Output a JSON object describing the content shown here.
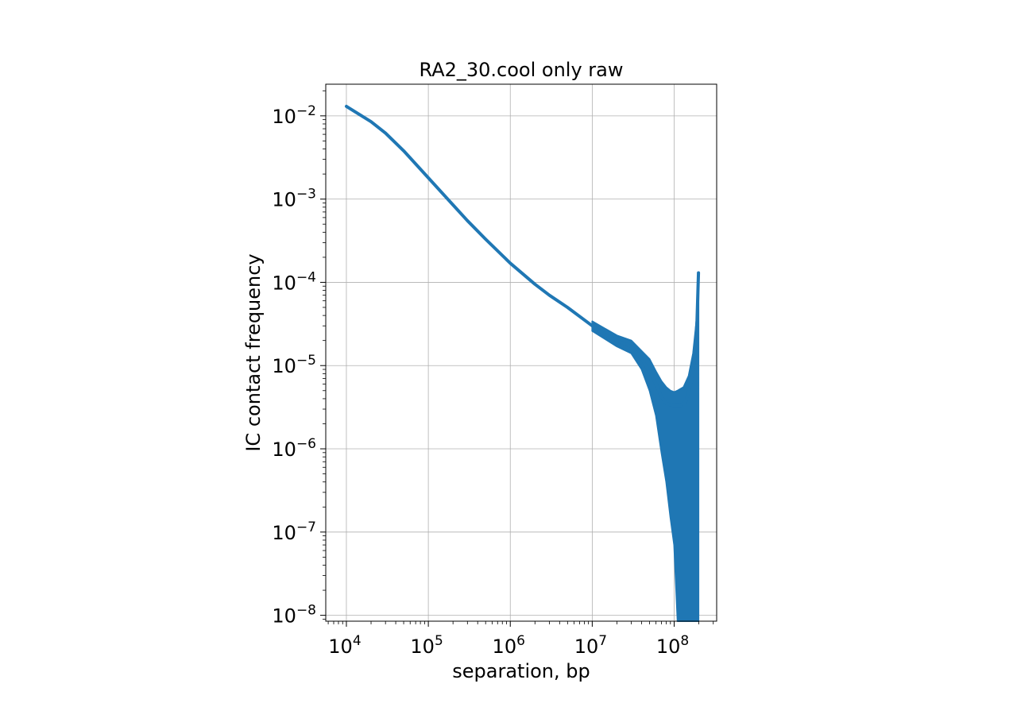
{
  "chart_data": {
    "type": "line",
    "title": "RA2_30.cool only raw",
    "xlabel": "separation, bp",
    "ylabel": "IC contact frequency",
    "xscale": "log",
    "yscale": "log",
    "xlim": [
      5600,
      330000000
    ],
    "ylim": [
      8.5e-09,
      0.024
    ],
    "x_ticks": [
      {
        "value": 10000,
        "base": "10",
        "exp": "4"
      },
      {
        "value": 100000,
        "base": "10",
        "exp": "5"
      },
      {
        "value": 1000000,
        "base": "10",
        "exp": "6"
      },
      {
        "value": 10000000,
        "base": "10",
        "exp": "7"
      },
      {
        "value": 100000000,
        "base": "10",
        "exp": "8"
      }
    ],
    "y_ticks": [
      {
        "value": 1e-08,
        "base": "10",
        "exp": "−8"
      },
      {
        "value": 1e-07,
        "base": "10",
        "exp": "−7"
      },
      {
        "value": 1e-06,
        "base": "10",
        "exp": "−6"
      },
      {
        "value": 1e-05,
        "base": "10",
        "exp": "−5"
      },
      {
        "value": 0.0001,
        "base": "10",
        "exp": "−4"
      },
      {
        "value": 0.001,
        "base": "10",
        "exp": "−3"
      },
      {
        "value": 0.01,
        "base": "10",
        "exp": "−2"
      }
    ],
    "grid": true,
    "legend": "none",
    "series": [
      {
        "color": "#1f77b4",
        "trend": [
          [
            10000,
            0.013
          ],
          [
            20000,
            0.0085
          ],
          [
            30000,
            0.0062
          ],
          [
            50000,
            0.0038
          ],
          [
            100000,
            0.0018
          ],
          [
            200000,
            0.00085
          ],
          [
            300000,
            0.00055
          ],
          [
            500000,
            0.00033
          ],
          [
            1000000,
            0.00017
          ],
          [
            2000000,
            9.5e-05
          ],
          [
            3000000,
            7e-05
          ],
          [
            5000000,
            5e-05
          ],
          [
            10000000,
            3e-05
          ],
          [
            15000000,
            2.3e-05
          ],
          [
            20000000,
            2e-05
          ],
          [
            30000000,
            1.7e-05
          ],
          [
            40000000,
            1.2e-05
          ],
          [
            50000000,
            8.5e-06
          ],
          [
            60000000,
            6e-06
          ],
          [
            70000000,
            4.2e-06
          ],
          [
            80000000,
            3.5e-06
          ],
          [
            100000000,
            3.3e-06
          ],
          [
            120000000,
            3.3e-06
          ],
          [
            140000000,
            3.8e-06
          ],
          [
            160000000,
            6e-06
          ],
          [
            180000000,
            1.3e-05
          ],
          [
            190000000,
            3.5e-05
          ],
          [
            198000000,
            0.00013
          ]
        ],
        "noise_envelope": [
          [
            10000000,
            2.6e-05,
            3.4e-05
          ],
          [
            20000000,
            1.7e-05,
            2.3e-05
          ],
          [
            30000000,
            1.4e-05,
            2e-05
          ],
          [
            40000000,
            9e-06,
            1.5e-05
          ],
          [
            50000000,
            5e-06,
            1.2e-05
          ],
          [
            60000000,
            2.5e-06,
            8.5e-06
          ],
          [
            70000000,
            9e-07,
            6.5e-06
          ],
          [
            80000000,
            4e-07,
            5.5e-06
          ],
          [
            90000000,
            1.5e-07,
            5e-06
          ],
          [
            100000000,
            7e-08,
            4.8e-06
          ],
          [
            110000000,
            8.5e-09,
            5e-06
          ],
          [
            130000000,
            8.5e-09,
            5.5e-06
          ],
          [
            150000000,
            8.5e-09,
            7.5e-06
          ],
          [
            170000000,
            8.5e-09,
            1.4e-05
          ],
          [
            190000000,
            8.5e-09,
            4e-05
          ],
          [
            198000000,
            8.5e-09,
            0.00013
          ]
        ]
      }
    ]
  }
}
